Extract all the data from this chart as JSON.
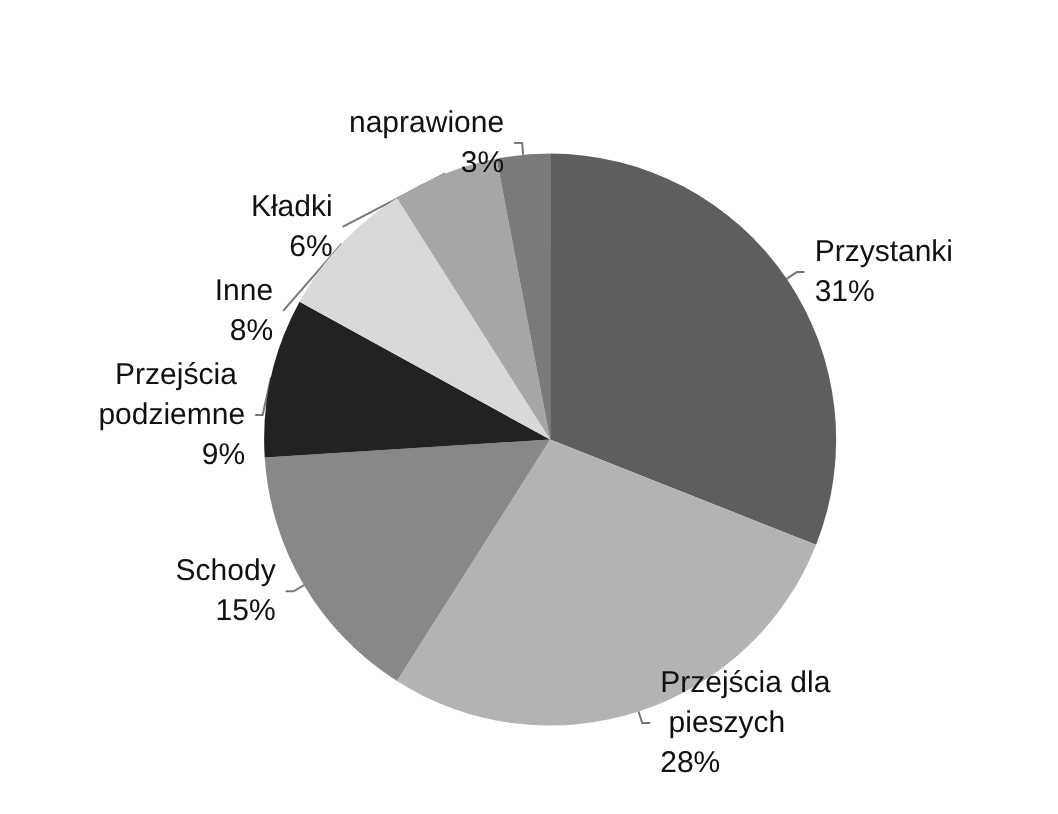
{
  "chart_data": {
    "type": "pie",
    "categories": [
      "Przystanki",
      "Przejścia dla pieszych",
      "Schody",
      "Przejścia podziemne",
      "Inne",
      "Kładki",
      "naprawione"
    ],
    "values": [
      31,
      28,
      15,
      9,
      8,
      6,
      3
    ],
    "value_labels": [
      "31%",
      "28%",
      "15%",
      "9%",
      "8%",
      "6%",
      "3%"
    ],
    "colors": [
      "#5e5e5e",
      "#b3b3b3",
      "#888888",
      "#222222",
      "#d9d9d9",
      "#a6a6a6",
      "#7a7a7a"
    ],
    "legend": false
  }
}
